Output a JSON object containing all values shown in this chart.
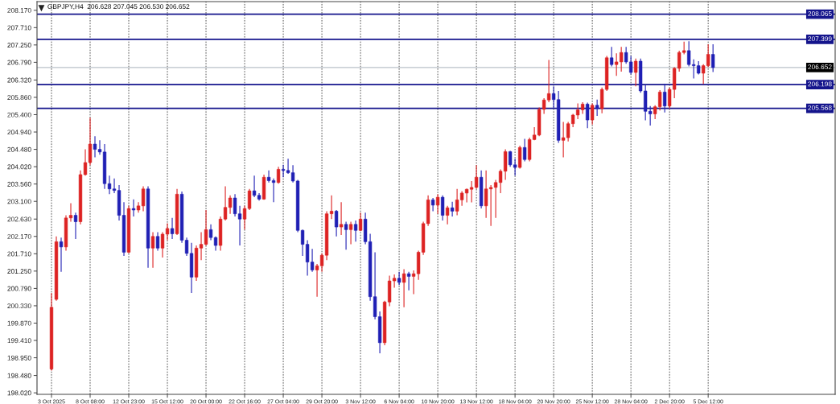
{
  "chart_data": {
    "type": "candlestick",
    "title": "GBPJPY,H4  206.628 207.045 206.530 206.652",
    "categories": [
      "3 Oct 2025",
      null,
      null,
      null,
      null,
      null,
      null,
      null,
      "8 Oct 08:00",
      null,
      null,
      null,
      null,
      null,
      null,
      null,
      "12 Oct 23:00",
      null,
      null,
      null,
      null,
      null,
      null,
      null,
      "15 Oct 12:00",
      null,
      null,
      null,
      null,
      null,
      null,
      null,
      "20 Oct 00:00",
      null,
      null,
      null,
      null,
      null,
      null,
      null,
      "22 Oct 16:00",
      null,
      null,
      null,
      null,
      null,
      null,
      null,
      "27 Oct 04:00",
      null,
      null,
      null,
      null,
      null,
      null,
      null,
      "29 Oct 20:00",
      null,
      null,
      null,
      null,
      null,
      null,
      null,
      "3 Nov 12:00",
      null,
      null,
      null,
      null,
      null,
      null,
      null,
      "6 Nov 04:00",
      null,
      null,
      null,
      null,
      null,
      null,
      null,
      "10 Nov 20:00",
      null,
      null,
      null,
      null,
      null,
      null,
      null,
      "13 Nov 12:00",
      null,
      null,
      null,
      null,
      null,
      null,
      null,
      "18 Nov 04:00",
      null,
      null,
      null,
      null,
      null,
      null,
      null,
      "20 Nov 20:00",
      null,
      null,
      null,
      null,
      null,
      null,
      null,
      "25 Nov 12:00",
      null,
      null,
      null,
      null,
      null,
      null,
      null,
      "28 Nov 04:00",
      null,
      null,
      null,
      null,
      null,
      null,
      null,
      "2 Dec 20:00",
      null,
      null,
      null,
      null,
      null,
      null,
      null,
      "5 Dec 12:00",
      null
    ],
    "ohlc": [
      [
        198.65,
        200.67,
        198.61,
        200.29
      ],
      [
        200.5,
        202.17,
        200.46,
        202.03
      ],
      [
        202.03,
        202.14,
        201.23,
        201.89
      ],
      [
        201.89,
        202.73,
        201.79,
        202.66
      ],
      [
        202.66,
        203.05,
        202.56,
        202.73
      ],
      [
        202.73,
        202.8,
        202.1,
        202.56
      ],
      [
        202.56,
        203.92,
        202.49,
        203.81
      ],
      [
        203.81,
        204.48,
        203.78,
        204.13
      ],
      [
        204.13,
        205.32,
        204.06,
        204.62
      ],
      [
        204.62,
        204.83,
        204.27,
        204.48
      ],
      [
        204.48,
        204.72,
        204.34,
        204.41
      ],
      [
        204.41,
        204.62,
        203.43,
        203.57
      ],
      [
        203.57,
        203.78,
        203.29,
        203.43
      ],
      [
        203.43,
        203.71,
        203.32,
        203.39
      ],
      [
        203.39,
        203.53,
        202.59,
        202.73
      ],
      [
        202.73,
        203.08,
        201.65,
        201.75
      ],
      [
        201.75,
        202.98,
        201.72,
        202.91
      ],
      [
        202.91,
        203.15,
        202.7,
        202.87
      ],
      [
        202.87,
        203.08,
        202.8,
        202.98
      ],
      [
        202.98,
        203.5,
        202.84,
        203.43
      ],
      [
        203.43,
        203.5,
        201.34,
        201.86
      ],
      [
        201.86,
        202.28,
        201.34,
        202.17
      ],
      [
        202.17,
        202.28,
        201.79,
        201.86
      ],
      [
        201.86,
        202.28,
        201.61,
        202.23
      ],
      [
        202.23,
        202.52,
        202.07,
        202.38
      ],
      [
        202.38,
        202.66,
        202.1,
        202.24
      ],
      [
        202.24,
        203.43,
        202.21,
        203.29
      ],
      [
        203.29,
        203.36,
        202.0,
        202.07
      ],
      [
        202.07,
        202.14,
        201.65,
        201.72
      ],
      [
        201.72,
        202.0,
        200.67,
        201.09
      ],
      [
        201.09,
        201.93,
        200.99,
        201.86
      ],
      [
        201.86,
        202.28,
        201.54,
        201.96
      ],
      [
        201.96,
        202.87,
        201.93,
        202.35
      ],
      [
        202.35,
        202.49,
        202.07,
        202.14
      ],
      [
        202.14,
        202.17,
        201.79,
        201.93
      ],
      [
        201.93,
        202.7,
        201.79,
        202.63
      ],
      [
        202.63,
        203.5,
        202.59,
        202.94
      ],
      [
        202.94,
        203.26,
        202.77,
        203.19
      ],
      [
        203.19,
        203.29,
        202.7,
        202.77
      ],
      [
        202.77,
        202.98,
        201.93,
        202.63
      ],
      [
        202.63,
        202.98,
        202.35,
        202.91
      ],
      [
        202.91,
        203.43,
        202.87,
        203.38
      ],
      [
        203.38,
        203.78,
        203.21,
        203.26
      ],
      [
        203.26,
        203.32,
        203.12,
        203.16
      ],
      [
        203.16,
        203.81,
        203.14,
        203.74
      ],
      [
        203.74,
        203.92,
        203.6,
        203.65
      ],
      [
        203.65,
        203.71,
        203.08,
        203.6
      ],
      [
        203.6,
        204.02,
        203.57,
        203.95
      ],
      [
        203.95,
        204.07,
        203.74,
        203.92
      ],
      [
        203.92,
        204.23,
        203.83,
        203.86
      ],
      [
        203.86,
        204.06,
        203.6,
        203.64
      ],
      [
        203.64,
        203.67,
        202.28,
        202.33
      ],
      [
        202.33,
        202.35,
        201.65,
        201.96
      ],
      [
        201.96,
        202.07,
        201.13,
        201.49
      ],
      [
        201.49,
        201.84,
        201.23,
        201.28
      ],
      [
        201.28,
        201.44,
        200.57,
        201.39
      ],
      [
        201.39,
        201.72,
        201.23,
        201.67
      ],
      [
        201.67,
        202.84,
        201.54,
        202.77
      ],
      [
        202.77,
        203.26,
        202.63,
        202.84
      ],
      [
        202.84,
        202.87,
        202.17,
        202.42
      ],
      [
        202.42,
        203.08,
        202.21,
        202.49
      ],
      [
        202.49,
        202.56,
        201.82,
        202.35
      ],
      [
        202.35,
        202.56,
        201.96,
        202.49
      ],
      [
        202.49,
        202.59,
        202.03,
        202.33
      ],
      [
        202.33,
        202.8,
        202.31,
        202.63
      ],
      [
        202.63,
        202.8,
        201.96,
        202.03
      ],
      [
        202.03,
        202.24,
        200.46,
        200.57
      ],
      [
        200.57,
        201.75,
        199.97,
        200.04
      ],
      [
        200.04,
        200.18,
        199.07,
        199.35
      ],
      [
        199.35,
        200.46,
        199.28,
        200.43
      ],
      [
        200.43,
        201.13,
        200.32,
        200.99
      ],
      [
        200.99,
        201.16,
        200.81,
        201.06
      ],
      [
        201.06,
        201.23,
        200.88,
        200.95
      ],
      [
        200.95,
        201.3,
        200.29,
        201.18
      ],
      [
        201.18,
        201.23,
        200.74,
        201.11
      ],
      [
        201.11,
        201.27,
        200.64,
        201.18
      ],
      [
        201.18,
        201.79,
        201.02,
        201.75
      ],
      [
        201.75,
        202.56,
        201.68,
        202.51
      ],
      [
        202.51,
        203.26,
        202.45,
        203.14
      ],
      [
        203.14,
        203.19,
        202.84,
        203.0
      ],
      [
        203.0,
        203.29,
        202.77,
        203.21
      ],
      [
        203.21,
        203.26,
        202.59,
        202.73
      ],
      [
        202.73,
        202.98,
        202.49,
        202.93
      ],
      [
        202.93,
        203.09,
        202.7,
        202.84
      ],
      [
        202.84,
        203.43,
        202.73,
        203.14
      ],
      [
        203.14,
        203.37,
        202.98,
        203.32
      ],
      [
        203.32,
        203.44,
        203.07,
        203.42
      ],
      [
        203.42,
        203.64,
        203.07,
        203.47
      ],
      [
        203.47,
        204.06,
        203.43,
        203.74
      ],
      [
        203.74,
        203.92,
        202.91,
        202.98
      ],
      [
        202.98,
        203.92,
        202.66,
        203.43
      ],
      [
        203.43,
        203.53,
        202.45,
        203.47
      ],
      [
        203.47,
        203.67,
        202.66,
        203.6
      ],
      [
        203.6,
        203.95,
        203.32,
        203.9
      ],
      [
        203.9,
        204.48,
        203.67,
        204.42
      ],
      [
        204.42,
        204.44,
        204.02,
        204.07
      ],
      [
        204.07,
        204.23,
        203.78,
        204.0
      ],
      [
        204.0,
        204.58,
        203.97,
        204.53
      ],
      [
        204.53,
        204.76,
        204.16,
        204.21
      ],
      [
        204.21,
        204.79,
        204.16,
        204.74
      ],
      [
        204.74,
        205.07,
        204.72,
        204.86
      ],
      [
        204.86,
        205.59,
        204.83,
        205.54
      ],
      [
        205.54,
        205.84,
        205.42,
        205.79
      ],
      [
        205.79,
        206.85,
        205.73,
        205.96
      ],
      [
        205.96,
        206.15,
        205.56,
        205.8
      ],
      [
        205.8,
        206.03,
        204.65,
        204.72
      ],
      [
        204.72,
        205.21,
        204.27,
        204.79
      ],
      [
        204.79,
        205.21,
        204.69,
        205.16
      ],
      [
        205.16,
        205.42,
        205.07,
        205.39
      ],
      [
        205.39,
        205.7,
        205.28,
        205.53
      ],
      [
        205.53,
        205.73,
        205.42,
        205.68
      ],
      [
        205.68,
        205.72,
        205.04,
        205.26
      ],
      [
        205.26,
        205.7,
        205.14,
        205.65
      ],
      [
        205.65,
        205.8,
        205.37,
        205.56
      ],
      [
        205.56,
        206.12,
        205.44,
        206.07
      ],
      [
        206.07,
        206.96,
        206.03,
        206.91
      ],
      [
        206.91,
        207.2,
        206.68,
        206.73
      ],
      [
        206.73,
        207.03,
        206.43,
        206.8
      ],
      [
        206.8,
        207.2,
        206.54,
        207.05
      ],
      [
        207.05,
        207.2,
        206.75,
        206.8
      ],
      [
        206.8,
        206.96,
        206.47,
        206.52
      ],
      [
        206.52,
        206.89,
        206.15,
        206.82
      ],
      [
        206.82,
        206.89,
        205.98,
        206.03
      ],
      [
        206.03,
        206.19,
        205.25,
        205.49
      ],
      [
        205.49,
        205.63,
        205.11,
        205.42
      ],
      [
        205.42,
        205.65,
        205.28,
        205.61
      ],
      [
        205.61,
        206.05,
        205.51,
        206.0
      ],
      [
        206.0,
        206.22,
        205.46,
        205.63
      ],
      [
        205.63,
        206.12,
        205.56,
        206.07
      ],
      [
        206.07,
        206.66,
        205.84,
        206.63
      ],
      [
        206.63,
        207.1,
        206.54,
        207.05
      ],
      [
        207.05,
        207.34,
        207.0,
        207.1
      ],
      [
        207.1,
        207.35,
        206.68,
        206.73
      ],
      [
        206.73,
        206.87,
        206.36,
        206.7
      ],
      [
        206.7,
        206.82,
        206.47,
        206.5
      ],
      [
        206.5,
        206.74,
        206.21,
        206.7
      ],
      [
        206.7,
        207.27,
        206.66,
        207.0
      ],
      [
        207.0,
        207.27,
        206.53,
        206.65
      ]
    ],
    "colors": [
      "#dd2222",
      "#dd2222",
      "#1f1fb4",
      "#dd2222",
      "#dd2222",
      "#1f1fb4",
      "#dd2222",
      "#dd2222",
      "#dd2222",
      "#1f1fb4",
      "#1f1fb4",
      "#1f1fb4",
      "#1f1fb4",
      "#1f1fb4",
      "#1f1fb4",
      "#1f1fb4",
      "#dd2222",
      "#1f1fb4",
      "#dd2222",
      "#dd2222",
      "#1f1fb4",
      "#dd2222",
      "#1f1fb4",
      "#dd2222",
      "#dd2222",
      "#1f1fb4",
      "#dd2222",
      "#1f1fb4",
      "#1f1fb4",
      "#1f1fb4",
      "#dd2222",
      "#dd2222",
      "#dd2222",
      "#1f1fb4",
      "#1f1fb4",
      "#dd2222",
      "#dd2222",
      "#dd2222",
      "#1f1fb4",
      "#1f1fb4",
      "#dd2222",
      "#dd2222",
      "#1f1fb4",
      "#1f1fb4",
      "#dd2222",
      "#1f1fb4",
      "#1f1fb4",
      "#dd2222",
      "#1f1fb4",
      "#1f1fb4",
      "#1f1fb4",
      "#1f1fb4",
      "#1f1fb4",
      "#1f1fb4",
      "#1f1fb4",
      "#dd2222",
      "#dd2222",
      "#dd2222",
      "#dd2222",
      "#1f1fb4",
      "#dd2222",
      "#1f1fb4",
      "#dd2222",
      "#1f1fb4",
      "#dd2222",
      "#1f1fb4",
      "#1f1fb4",
      "#1f1fb4",
      "#1f1fb4",
      "#dd2222",
      "#dd2222",
      "#dd2222",
      "#1f1fb4",
      "#dd2222",
      "#1f1fb4",
      "#dd2222",
      "#dd2222",
      "#dd2222",
      "#dd2222",
      "#1f1fb4",
      "#dd2222",
      "#1f1fb4",
      "#dd2222",
      "#1f1fb4",
      "#dd2222",
      "#dd2222",
      "#dd2222",
      "#dd2222",
      "#dd2222",
      "#1f1fb4",
      "#dd2222",
      "#dd2222",
      "#dd2222",
      "#dd2222",
      "#dd2222",
      "#1f1fb4",
      "#1f1fb4",
      "#dd2222",
      "#1f1fb4",
      "#dd2222",
      "#dd2222",
      "#dd2222",
      "#dd2222",
      "#dd2222",
      "#1f1fb4",
      "#1f1fb4",
      "#dd2222",
      "#dd2222",
      "#dd2222",
      "#dd2222",
      "#dd2222",
      "#1f1fb4",
      "#dd2222",
      "#1f1fb4",
      "#dd2222",
      "#dd2222",
      "#1f1fb4",
      "#dd2222",
      "#dd2222",
      "#1f1fb4",
      "#1f1fb4",
      "#dd2222",
      "#1f1fb4",
      "#1f1fb4",
      "#1f1fb4",
      "#dd2222",
      "#dd2222",
      "#1f1fb4",
      "#dd2222",
      "#dd2222",
      "#dd2222",
      "#dd2222",
      "#1f1fb4",
      "#1f1fb4",
      "#1f1fb4",
      "#dd2222",
      "#dd2222",
      "#1f1fb4"
    ],
    "ylim": [
      197.98,
      208.4
    ],
    "yticks": [
      {
        "value": 208.17,
        "label": "208.170"
      },
      {
        "value": 207.71,
        "label": "207.710"
      },
      {
        "value": 207.25,
        "label": "207.250"
      },
      {
        "value": 206.79,
        "label": "206.790"
      },
      {
        "value": 206.32,
        "label": "206.320"
      },
      {
        "value": 205.86,
        "label": "205.860"
      },
      {
        "value": 205.4,
        "label": "205.400"
      },
      {
        "value": 204.94,
        "label": "204.940"
      },
      {
        "value": 204.48,
        "label": "204.480"
      },
      {
        "value": 204.02,
        "label": "204.020"
      },
      {
        "value": 203.56,
        "label": "203.560"
      },
      {
        "value": 203.1,
        "label": "203.100"
      },
      {
        "value": 202.63,
        "label": "202.630"
      },
      {
        "value": 202.17,
        "label": "202.170"
      },
      {
        "value": 201.71,
        "label": "201.710"
      },
      {
        "value": 201.25,
        "label": "201.250"
      },
      {
        "value": 200.79,
        "label": "200.790"
      },
      {
        "value": 200.33,
        "label": "200.330"
      },
      {
        "value": 199.87,
        "label": "199.870"
      },
      {
        "value": 199.41,
        "label": "199.410"
      },
      {
        "value": 198.95,
        "label": "198.950"
      },
      {
        "value": 198.48,
        "label": "198.480"
      },
      {
        "value": 198.02,
        "label": "198.020"
      }
    ],
    "grid": "x",
    "ref_lines": [
      {
        "axis": "y",
        "value": 208.065,
        "label": "208.065",
        "color": "#14148c",
        "line_style": "solid"
      },
      {
        "axis": "y",
        "value": 207.399,
        "label": "207.399",
        "color": "#14148c",
        "line_style": "solid"
      },
      {
        "axis": "y",
        "value": 206.652,
        "label": "206.652",
        "color": "#b9c0c8",
        "line_style": "solid"
      },
      {
        "axis": "y",
        "value": 206.198,
        "label": "206.198",
        "color": "#14148c",
        "line_style": "solid"
      },
      {
        "axis": "y",
        "value": 205.568,
        "label": "205.568",
        "color": "#14148c",
        "line_style": "solid"
      }
    ]
  }
}
